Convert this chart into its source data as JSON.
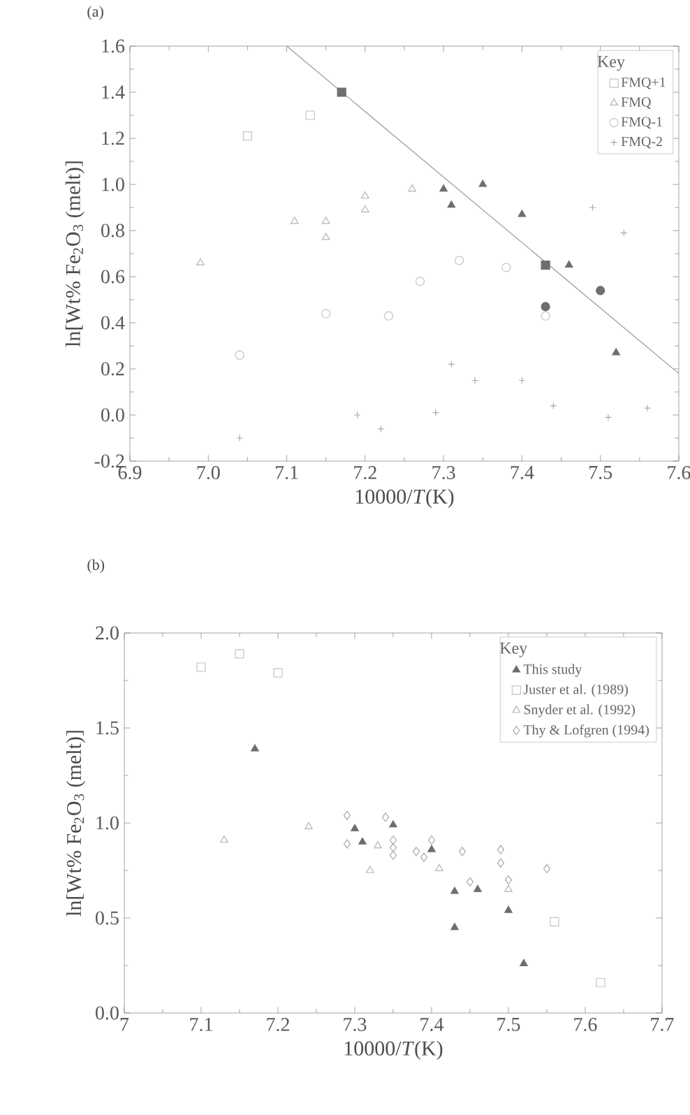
{
  "chart_data": [
    {
      "type": "scatter",
      "title": "(a)",
      "xlabel": "10000/*T*(K)",
      "ylabel": "ln[Wt% Fe$_{2}$O$_{3}$ (melt)]",
      "legend_title": "Key",
      "legend": "top right",
      "xlim": [
        6.9,
        7.6
      ],
      "ylim": [
        -0.2,
        1.6
      ],
      "xticks": [
        6.9,
        {
          "value": 7,
          "label": "7.0"
        },
        7.1,
        7.2,
        7.3,
        7.4,
        7.5,
        7.6
      ],
      "yticks": [
        -0.2,
        {
          "value": 0,
          "label": "0.0"
        },
        0.2,
        0.4,
        0.6,
        0.8,
        {
          "value": 1,
          "label": "1.0"
        },
        1.2,
        1.4,
        1.6
      ],
      "series": [
        {
          "name": "FMQ+1",
          "color": "#c4c4c4",
          "marker": "square",
          "x": [
            7.05,
            7.13
          ],
          "values": [
            1.21,
            1.3
          ]
        },
        {
          "name": "FMQ",
          "color": "#b4b4b4",
          "marker": "triangle",
          "x": [
            6.99,
            7.11,
            7.15,
            7.15,
            7.2,
            7.2,
            7.26
          ],
          "values": [
            0.66,
            0.84,
            0.84,
            0.77,
            0.95,
            0.89,
            0.98
          ]
        },
        {
          "name": "FMQ-1",
          "color": "#c4c4c4",
          "marker": "circle",
          "x": [
            7.04,
            7.15,
            7.23,
            7.27,
            7.32,
            7.38,
            7.43
          ],
          "values": [
            0.26,
            0.44,
            0.43,
            0.58,
            0.67,
            0.64,
            0.43
          ]
        },
        {
          "name": "FMQ-2",
          "color": "#a8a8a8",
          "marker": "cross",
          "x": [
            7.04,
            7.19,
            7.22,
            7.29,
            7.31,
            7.34,
            7.4,
            7.44,
            7.49,
            7.51,
            7.53,
            7.56
          ],
          "values": [
            -0.1,
            0.0,
            -0.06,
            0.01,
            0.22,
            0.15,
            0.15,
            0.04,
            0.9,
            -0.01,
            0.79,
            0.03
          ]
        },
        {
          "type": "line",
          "color": "#9a9a9a",
          "marker": "none",
          "x": [
            7.1,
            7.6
          ],
          "values": [
            1.6,
            0.18
          ]
        },
        {
          "color": "#6e6e6e",
          "marker": "square",
          "x": [
            7.17,
            7.43
          ],
          "values": [
            1.4,
            0.65
          ]
        },
        {
          "color": "#6e6e6e",
          "marker": "triangle",
          "x": [
            7.3,
            7.31,
            7.35,
            7.4,
            7.46,
            7.52
          ],
          "values": [
            0.98,
            0.91,
            1.0,
            0.87,
            0.65,
            0.27
          ]
        },
        {
          "color": "#6e6e6e",
          "marker": "circle",
          "x": [
            7.43,
            7.5
          ],
          "values": [
            0.47,
            0.54
          ]
        }
      ]
    },
    {
      "type": "scatter",
      "title": "(b)",
      "xlabel": "10000/*T*(K)",
      "ylabel": "ln[Wt% Fe$_{2}$O$_{3}$ (melt)]",
      "legend_title": "Key",
      "legend": "top right",
      "xlim": [
        7,
        7.7
      ],
      "ylim": [
        0.0,
        2.0
      ],
      "xticks": [
        7,
        7.1,
        7.2,
        7.3,
        7.4,
        7.5,
        7.6,
        7.7
      ],
      "yticks": [
        {
          "value": 0,
          "label": "0.0"
        },
        0.5,
        {
          "value": 1,
          "label": "1.0"
        },
        1.5,
        {
          "value": 2,
          "label": "2.0"
        }
      ],
      "series": [
        {
          "name": "This study",
          "color": "#6e6e6e",
          "marker": "triangle",
          "x": [
            7.17,
            7.3,
            7.31,
            7.35,
            7.4,
            7.43,
            7.43,
            7.46,
            7.5,
            7.52
          ],
          "values": [
            1.39,
            0.97,
            0.9,
            0.99,
            0.86,
            0.64,
            0.45,
            0.65,
            0.54,
            0.26
          ]
        },
        {
          "name": "Juster et al. (1989)",
          "color": "#c4c4c4",
          "marker": "square",
          "x": [
            7.1,
            7.15,
            7.2,
            7.56,
            7.62
          ],
          "values": [
            1.82,
            1.89,
            1.79,
            0.48,
            0.16
          ]
        },
        {
          "name": "Snyder et al. (1992)",
          "color": "#b4b4b4",
          "marker": "triangle",
          "x": [
            7.13,
            7.24,
            7.32,
            7.33,
            7.41,
            7.5
          ],
          "values": [
            0.91,
            0.98,
            0.75,
            0.88,
            0.76,
            0.65
          ]
        },
        {
          "name": "Thy & Lofgren (1994)",
          "color": "#a8a8a8",
          "marker": "diamond",
          "x": [
            7.29,
            7.29,
            7.34,
            7.35,
            7.35,
            7.35,
            7.38,
            7.39,
            7.4,
            7.44,
            7.45,
            7.49,
            7.49,
            7.5,
            7.55
          ],
          "values": [
            1.04,
            0.89,
            1.03,
            0.91,
            0.87,
            0.83,
            0.85,
            0.82,
            0.91,
            0.85,
            0.69,
            0.86,
            0.79,
            0.7,
            0.76
          ]
        }
      ]
    }
  ]
}
